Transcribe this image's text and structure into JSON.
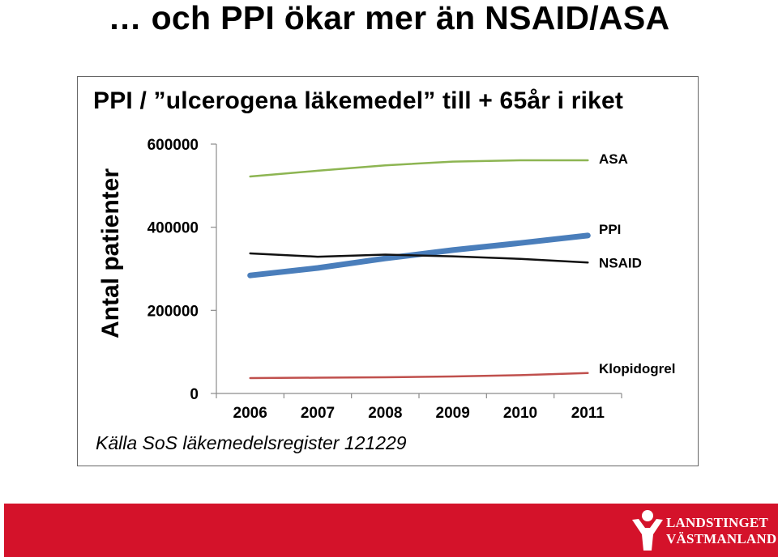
{
  "slide": {
    "title": "… och PPI ökar mer än NSAID/ASA",
    "source": "Källa SoS läkemedelsregister 121229",
    "logo": {
      "line1": "LANDSTINGET",
      "line2": "VÄSTMANLAND"
    }
  },
  "colors": {
    "ASA": "#8db552",
    "PPI": "#4a7ebb",
    "NSAID": "#111111",
    "Klopidogrel": "#c0504d",
    "footer": "#d4122a"
  },
  "chart_data": {
    "type": "line",
    "title": "PPI / ”ulcerogena läkemedel” till + 65år i riket",
    "xlabel": "",
    "ylabel": "Antal patienter",
    "categories": [
      "2006",
      "2007",
      "2008",
      "2009",
      "2010",
      "2011"
    ],
    "ylim": [
      0,
      600000
    ],
    "yticks": [
      0,
      200000,
      400000,
      600000
    ],
    "ytick_labels": [
      "0",
      "200000",
      "400000",
      "600000"
    ],
    "grid": false,
    "legend": "right-end labels",
    "series": [
      {
        "name": "ASA",
        "values": [
          522000,
          536000,
          549000,
          558000,
          561000,
          561000
        ]
      },
      {
        "name": "PPI",
        "values": [
          284000,
          302000,
          325000,
          345000,
          362000,
          380000
        ]
      },
      {
        "name": "NSAID",
        "values": [
          337000,
          329000,
          334000,
          330000,
          324000,
          315000
        ]
      },
      {
        "name": "Klopidogrel",
        "values": [
          37000,
          38000,
          39000,
          41000,
          44000,
          49000
        ]
      }
    ]
  }
}
